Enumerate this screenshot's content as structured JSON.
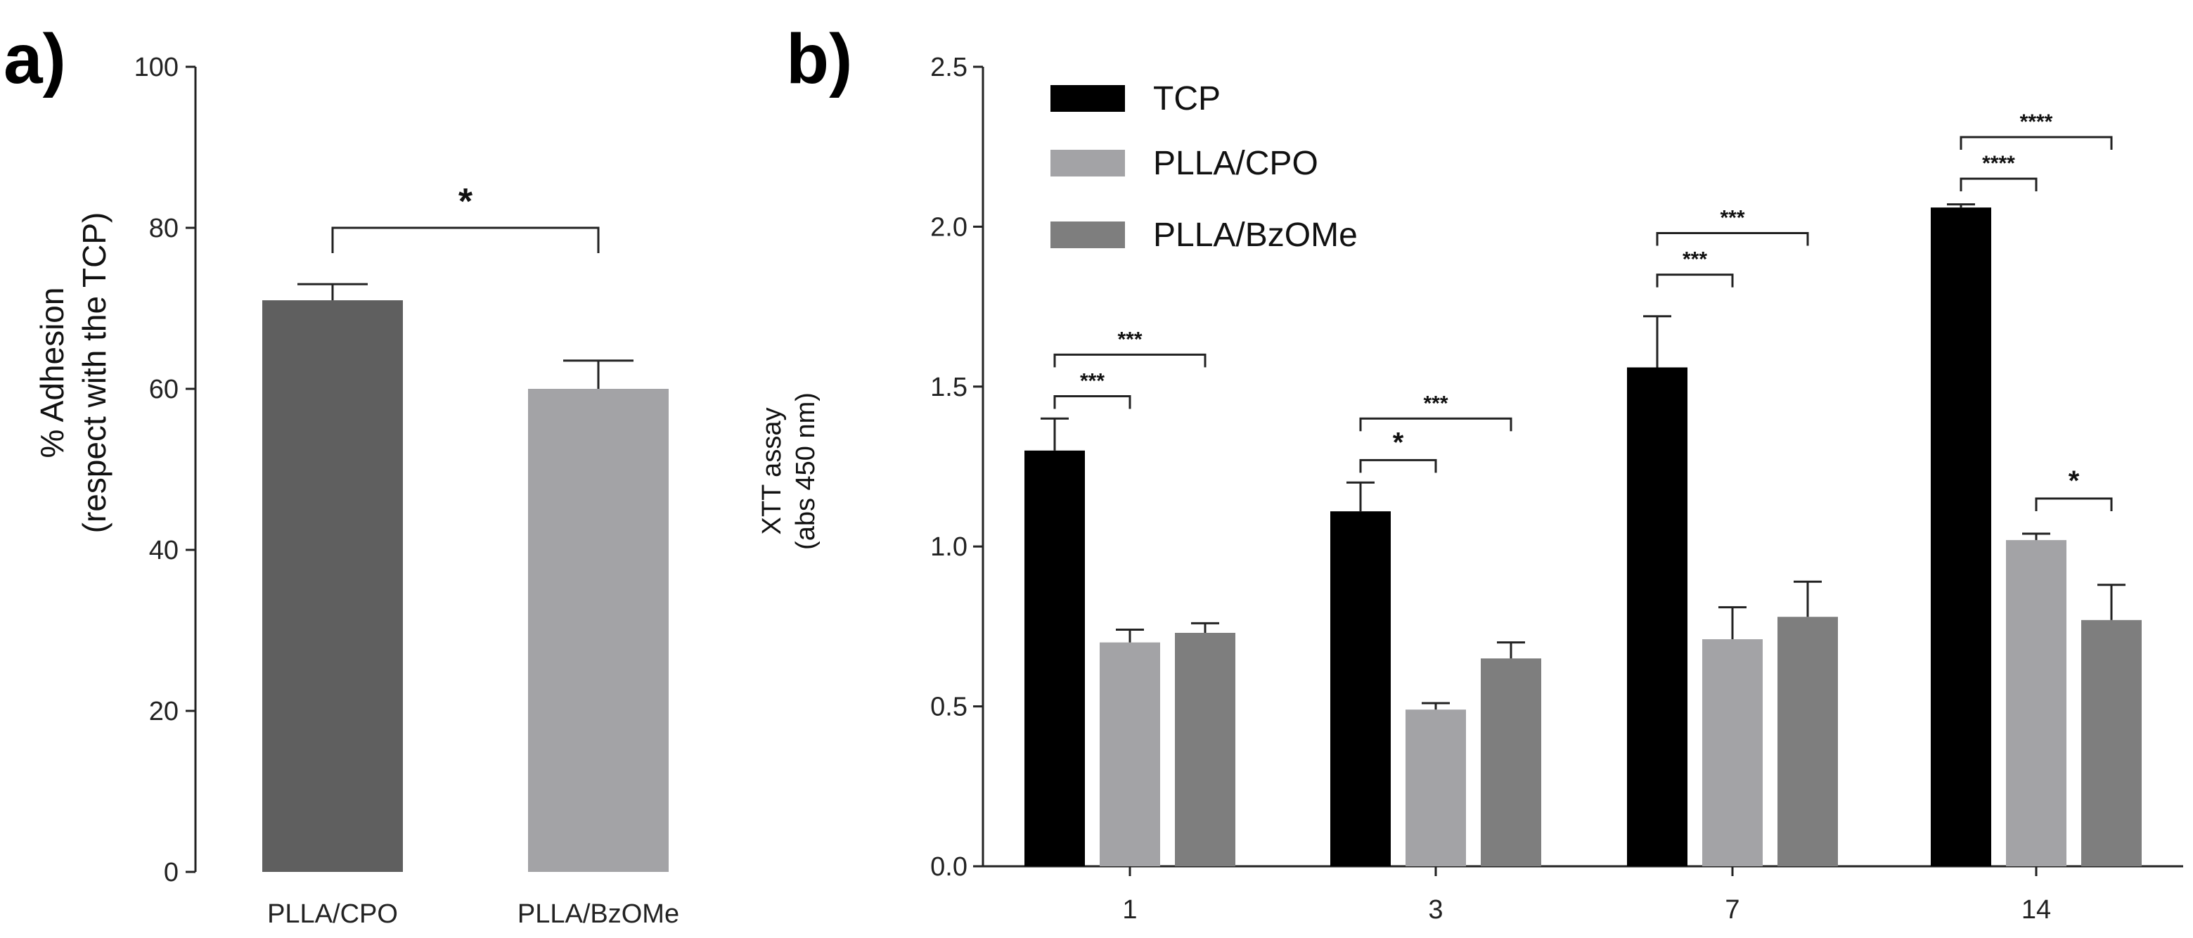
{
  "chart_data": [
    {
      "panel": "a)",
      "type": "bar",
      "ylabel": "% Adhesion",
      "ylabel2": "(respect with the TCP)",
      "categories": [
        "PLLA/CPO",
        "PLLA/BzOMe"
      ],
      "values": [
        71,
        60
      ],
      "errors": [
        2,
        3.5
      ],
      "colors": [
        "#5f5f5f",
        "#a3a3a6"
      ],
      "ylim": [
        0,
        100
      ],
      "yticks": [
        "0",
        "20",
        "40",
        "60",
        "80",
        "100"
      ],
      "significance": [
        {
          "from": 0,
          "to": 1,
          "label": "*",
          "y": 80
        }
      ]
    },
    {
      "panel": "b)",
      "type": "bar",
      "ylabel": "XTT assay",
      "ylabel2": "(abs 450 nm)",
      "categories": [
        "1",
        "3",
        "7",
        "14"
      ],
      "ylim": [
        0,
        2.5
      ],
      "yticks": [
        "0.0",
        "0.5",
        "1.0",
        "1.5",
        "2.0",
        "2.5"
      ],
      "series": [
        {
          "name": "TCP",
          "color": "#000000",
          "values": [
            1.3,
            1.11,
            1.56,
            2.06
          ],
          "errors": [
            0.1,
            0.09,
            0.16,
            0.01
          ]
        },
        {
          "name": "PLLA/CPO",
          "color": "#a3a3a6",
          "values": [
            0.7,
            0.49,
            0.71,
            1.02
          ],
          "errors": [
            0.04,
            0.02,
            0.1,
            0.02
          ]
        },
        {
          "name": "PLLA/BzOMe",
          "color": "#7e7e7e",
          "values": [
            0.73,
            0.65,
            0.78,
            0.77
          ],
          "errors": [
            0.03,
            0.05,
            0.11,
            0.11
          ]
        }
      ],
      "significance": [
        {
          "group": 0,
          "from": 0,
          "to": 1,
          "label": "***",
          "y": 1.47
        },
        {
          "group": 0,
          "from": 0,
          "to": 2,
          "label": "***",
          "y": 1.6
        },
        {
          "group": 1,
          "from": 0,
          "to": 1,
          "label": "*",
          "y": 1.27
        },
        {
          "group": 1,
          "from": 0,
          "to": 2,
          "label": "***",
          "y": 1.4
        },
        {
          "group": 2,
          "from": 0,
          "to": 1,
          "label": "***",
          "y": 1.85
        },
        {
          "group": 2,
          "from": 0,
          "to": 2,
          "label": "***",
          "y": 1.98
        },
        {
          "group": 3,
          "from": 0,
          "to": 1,
          "label": "****",
          "y": 2.15
        },
        {
          "group": 3,
          "from": 0,
          "to": 2,
          "label": "****",
          "y": 2.28
        },
        {
          "group": 3,
          "from": 1,
          "to": 2,
          "label": "*",
          "y": 1.15
        }
      ]
    }
  ]
}
